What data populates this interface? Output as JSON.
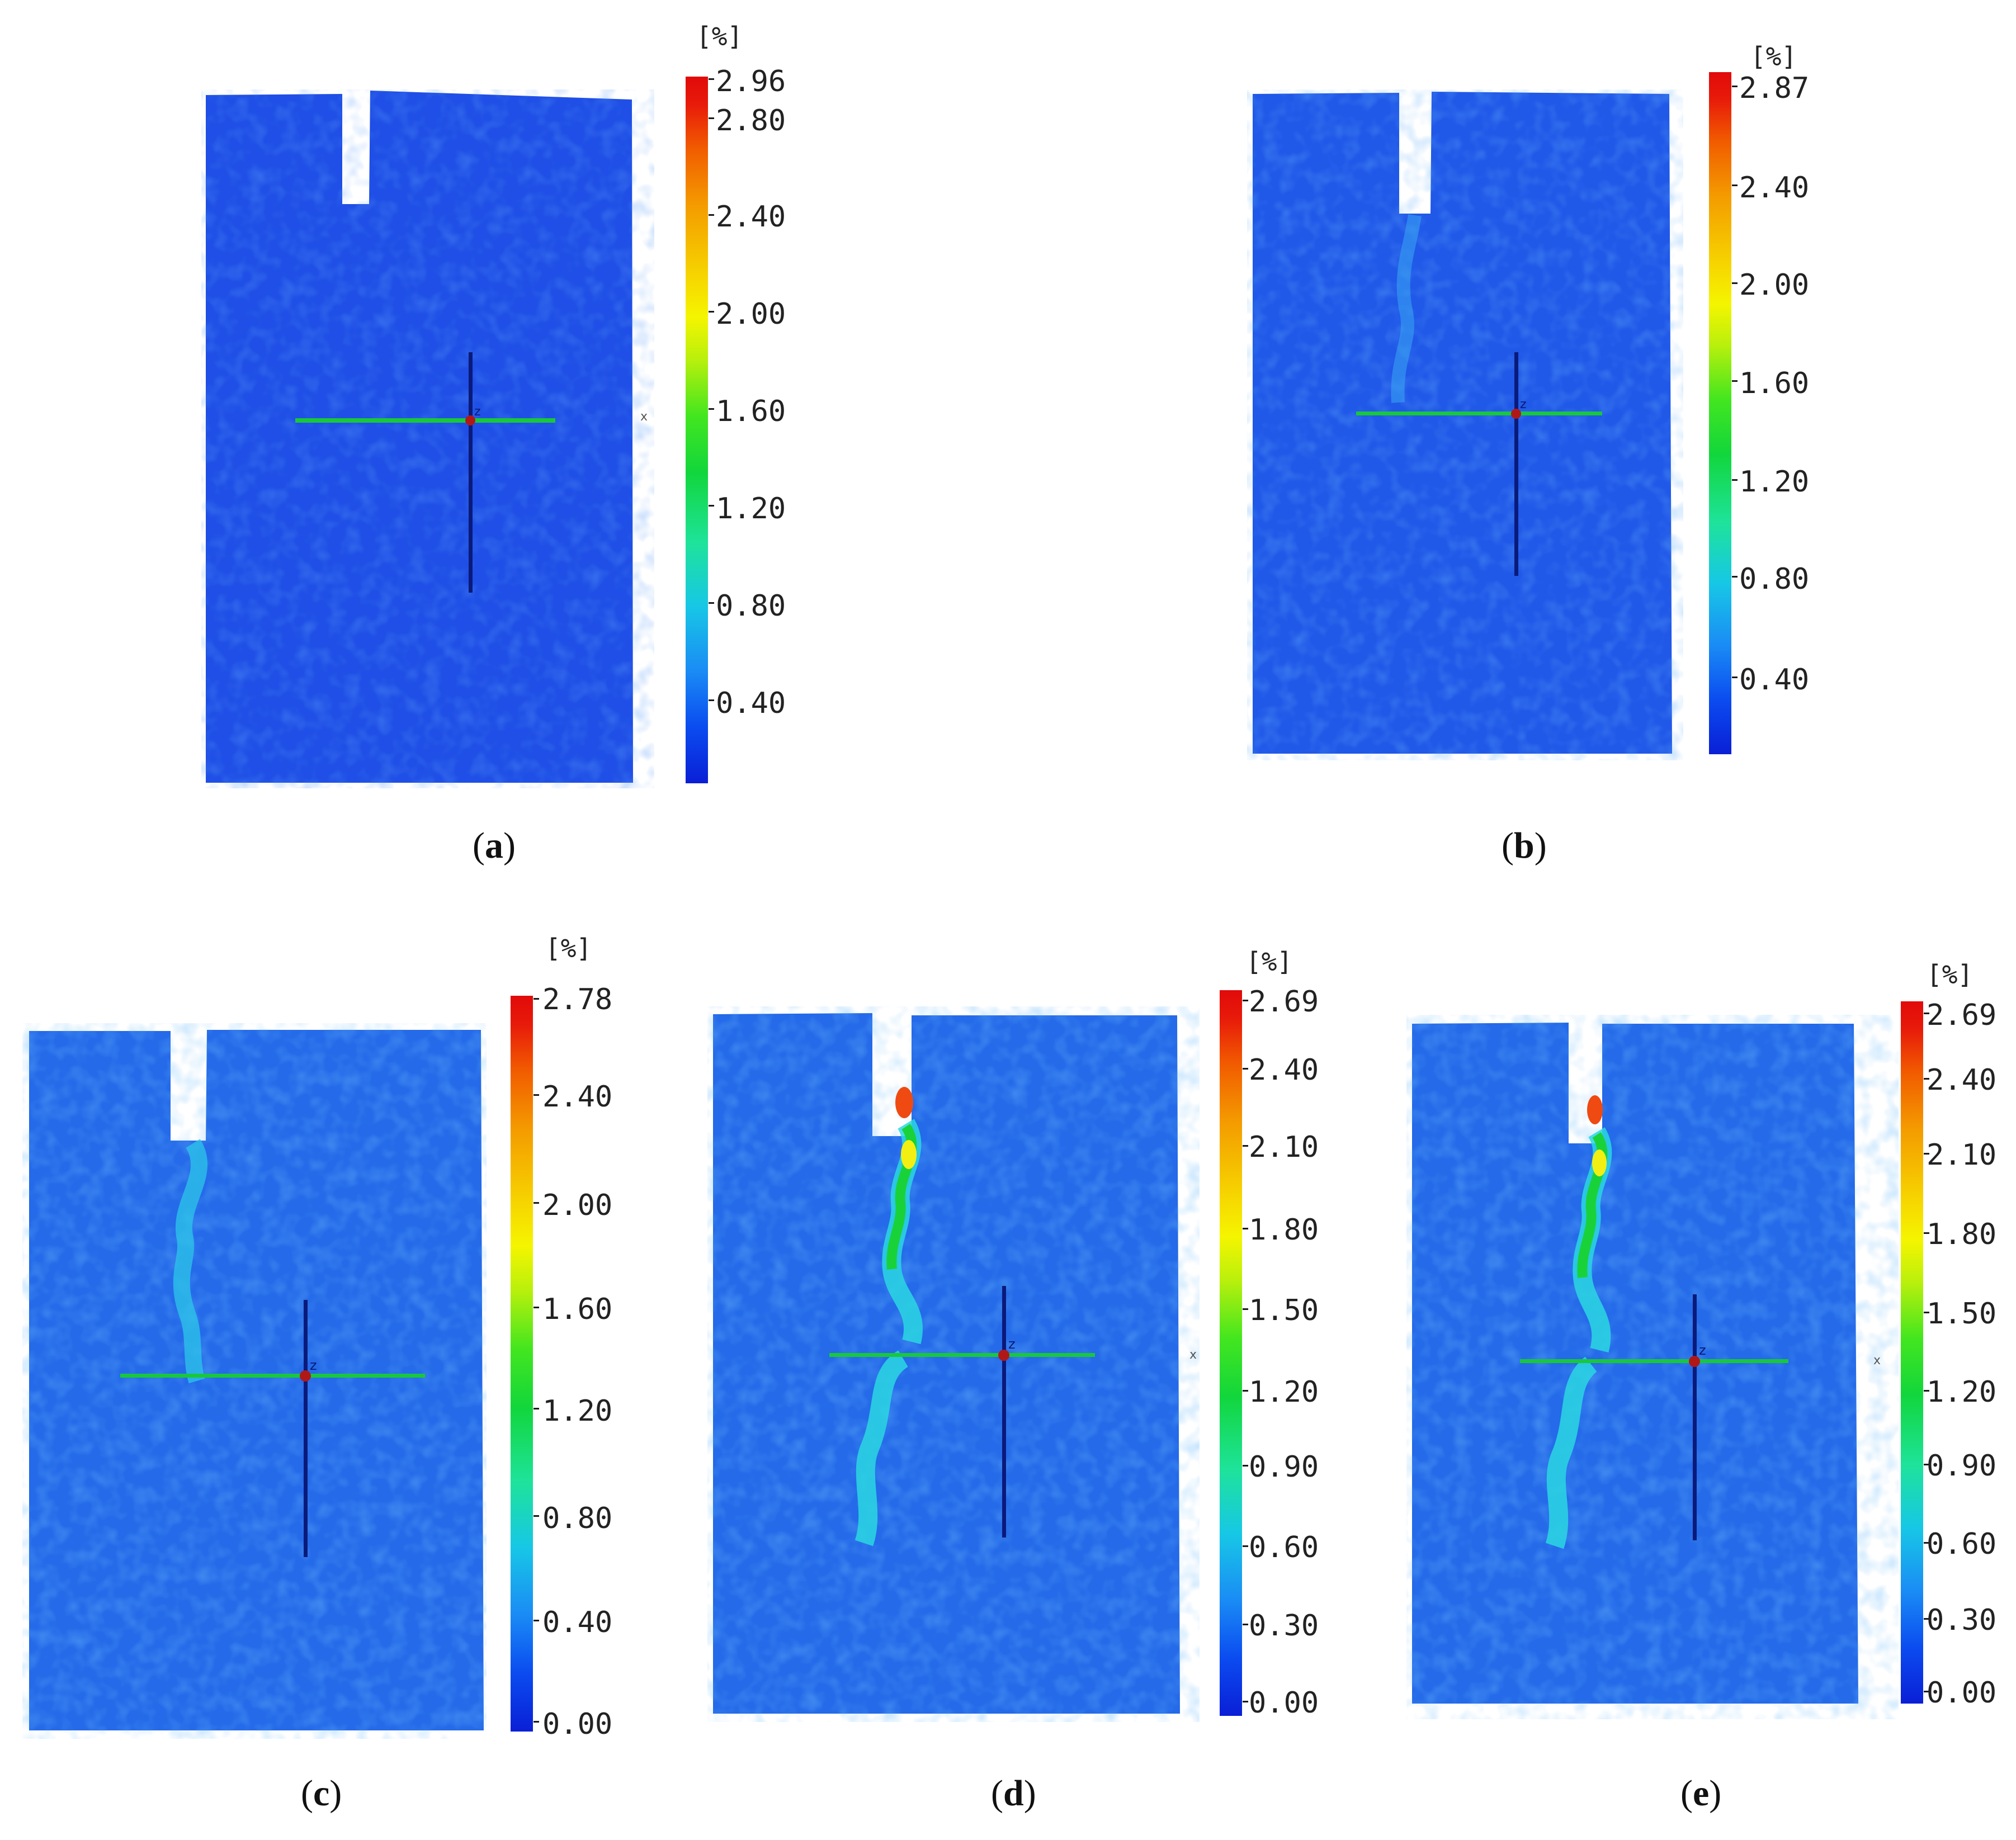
{
  "panels": [
    {
      "id": "a",
      "caption_letter": "a",
      "unit": "[%]",
      "ticks": [
        "2.96",
        "2.80",
        "2.40",
        "2.00",
        "1.60",
        "1.20",
        "0.80",
        "0.40"
      ],
      "crack": "none",
      "axis_label_x": "x",
      "axis_label_z": "z"
    },
    {
      "id": "b",
      "caption_letter": "b",
      "unit": "[%]",
      "ticks": [
        "2.87",
        "2.40",
        "2.00",
        "1.60",
        "1.20",
        "0.80",
        "0.40"
      ],
      "crack": "faint",
      "axis_label_z": "z"
    },
    {
      "id": "c",
      "caption_letter": "c",
      "unit": "[%]",
      "ticks": [
        "2.78",
        "2.40",
        "2.00",
        "1.60",
        "1.20",
        "0.80",
        "0.40",
        "0.00"
      ],
      "crack": "light",
      "axis_label_z": "z"
    },
    {
      "id": "d",
      "caption_letter": "d",
      "unit": "[%]",
      "ticks": [
        "2.69",
        "2.40",
        "2.10",
        "1.80",
        "1.50",
        "1.20",
        "0.90",
        "0.60",
        "0.30",
        "0.00"
      ],
      "crack": "strong",
      "axis_label_x": "x",
      "axis_label_z": "z"
    },
    {
      "id": "e",
      "caption_letter": "e",
      "unit": "[%]",
      "ticks": [
        "2.69",
        "2.40",
        "2.10",
        "1.80",
        "1.50",
        "1.20",
        "0.90",
        "0.60",
        "0.30",
        "0.00"
      ],
      "crack": "strong",
      "axis_label_x": "x",
      "axis_label_z": "z"
    }
  ],
  "colors": {
    "field": "#1f4fe6",
    "field_light": "#2a78ee",
    "crack_cyan": "#2ad7e2",
    "crack_green": "#19d23a",
    "crack_yellow": "#f2ef12",
    "crack_red": "#ef4a12",
    "axis_h": "#19c83a",
    "axis_v": "#0a1a7a",
    "origin": "#b01818"
  }
}
